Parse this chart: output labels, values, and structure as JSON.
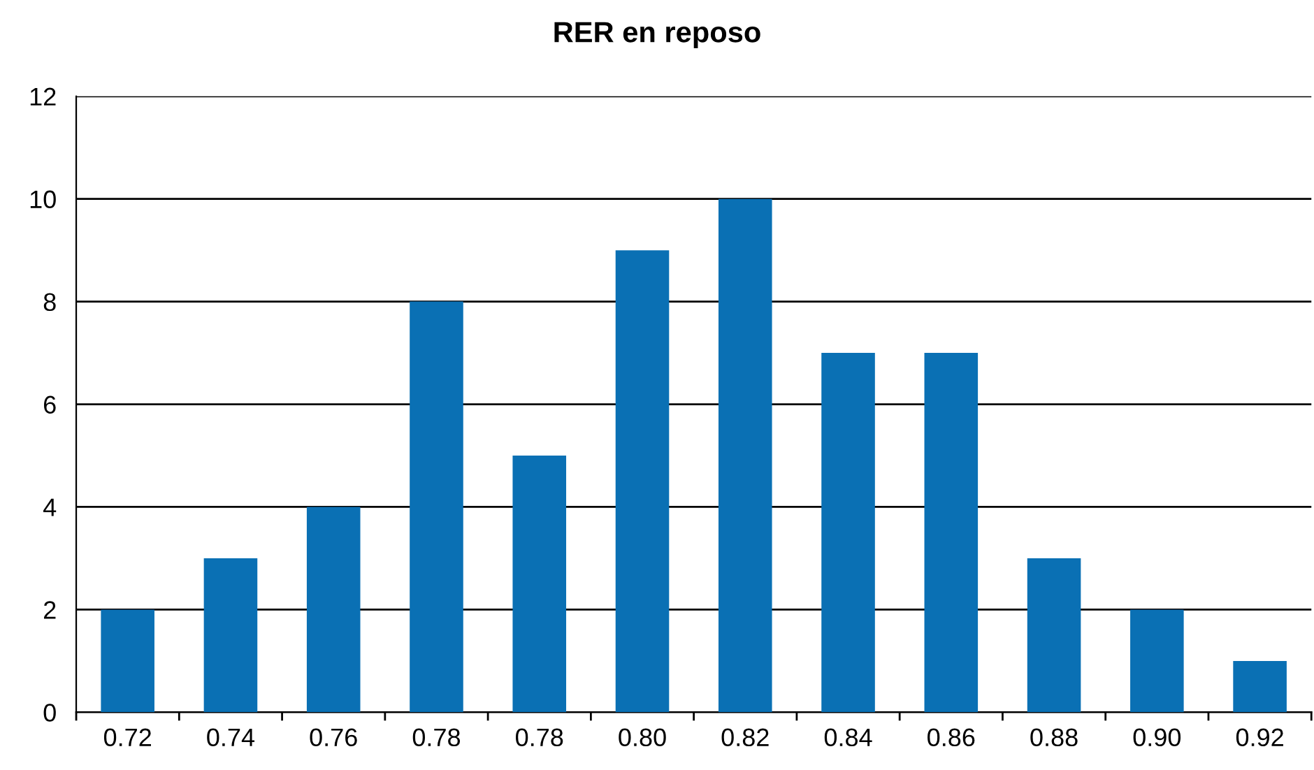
{
  "chart_data": {
    "type": "bar",
    "title": "RER en reposo",
    "categories": [
      "0.72",
      "0.74",
      "0.76",
      "0.78",
      "0.78",
      "0.80",
      "0.82",
      "0.84",
      "0.86",
      "0.88",
      "0.90",
      "0.92"
    ],
    "values": [
      2,
      3,
      4,
      8,
      5,
      9,
      10,
      7,
      7,
      3,
      2,
      1
    ],
    "color": "#0a70b4",
    "ylim": [
      0,
      12
    ],
    "yticks": [
      0,
      2,
      4,
      6,
      8,
      10,
      12
    ],
    "grid": "y"
  }
}
